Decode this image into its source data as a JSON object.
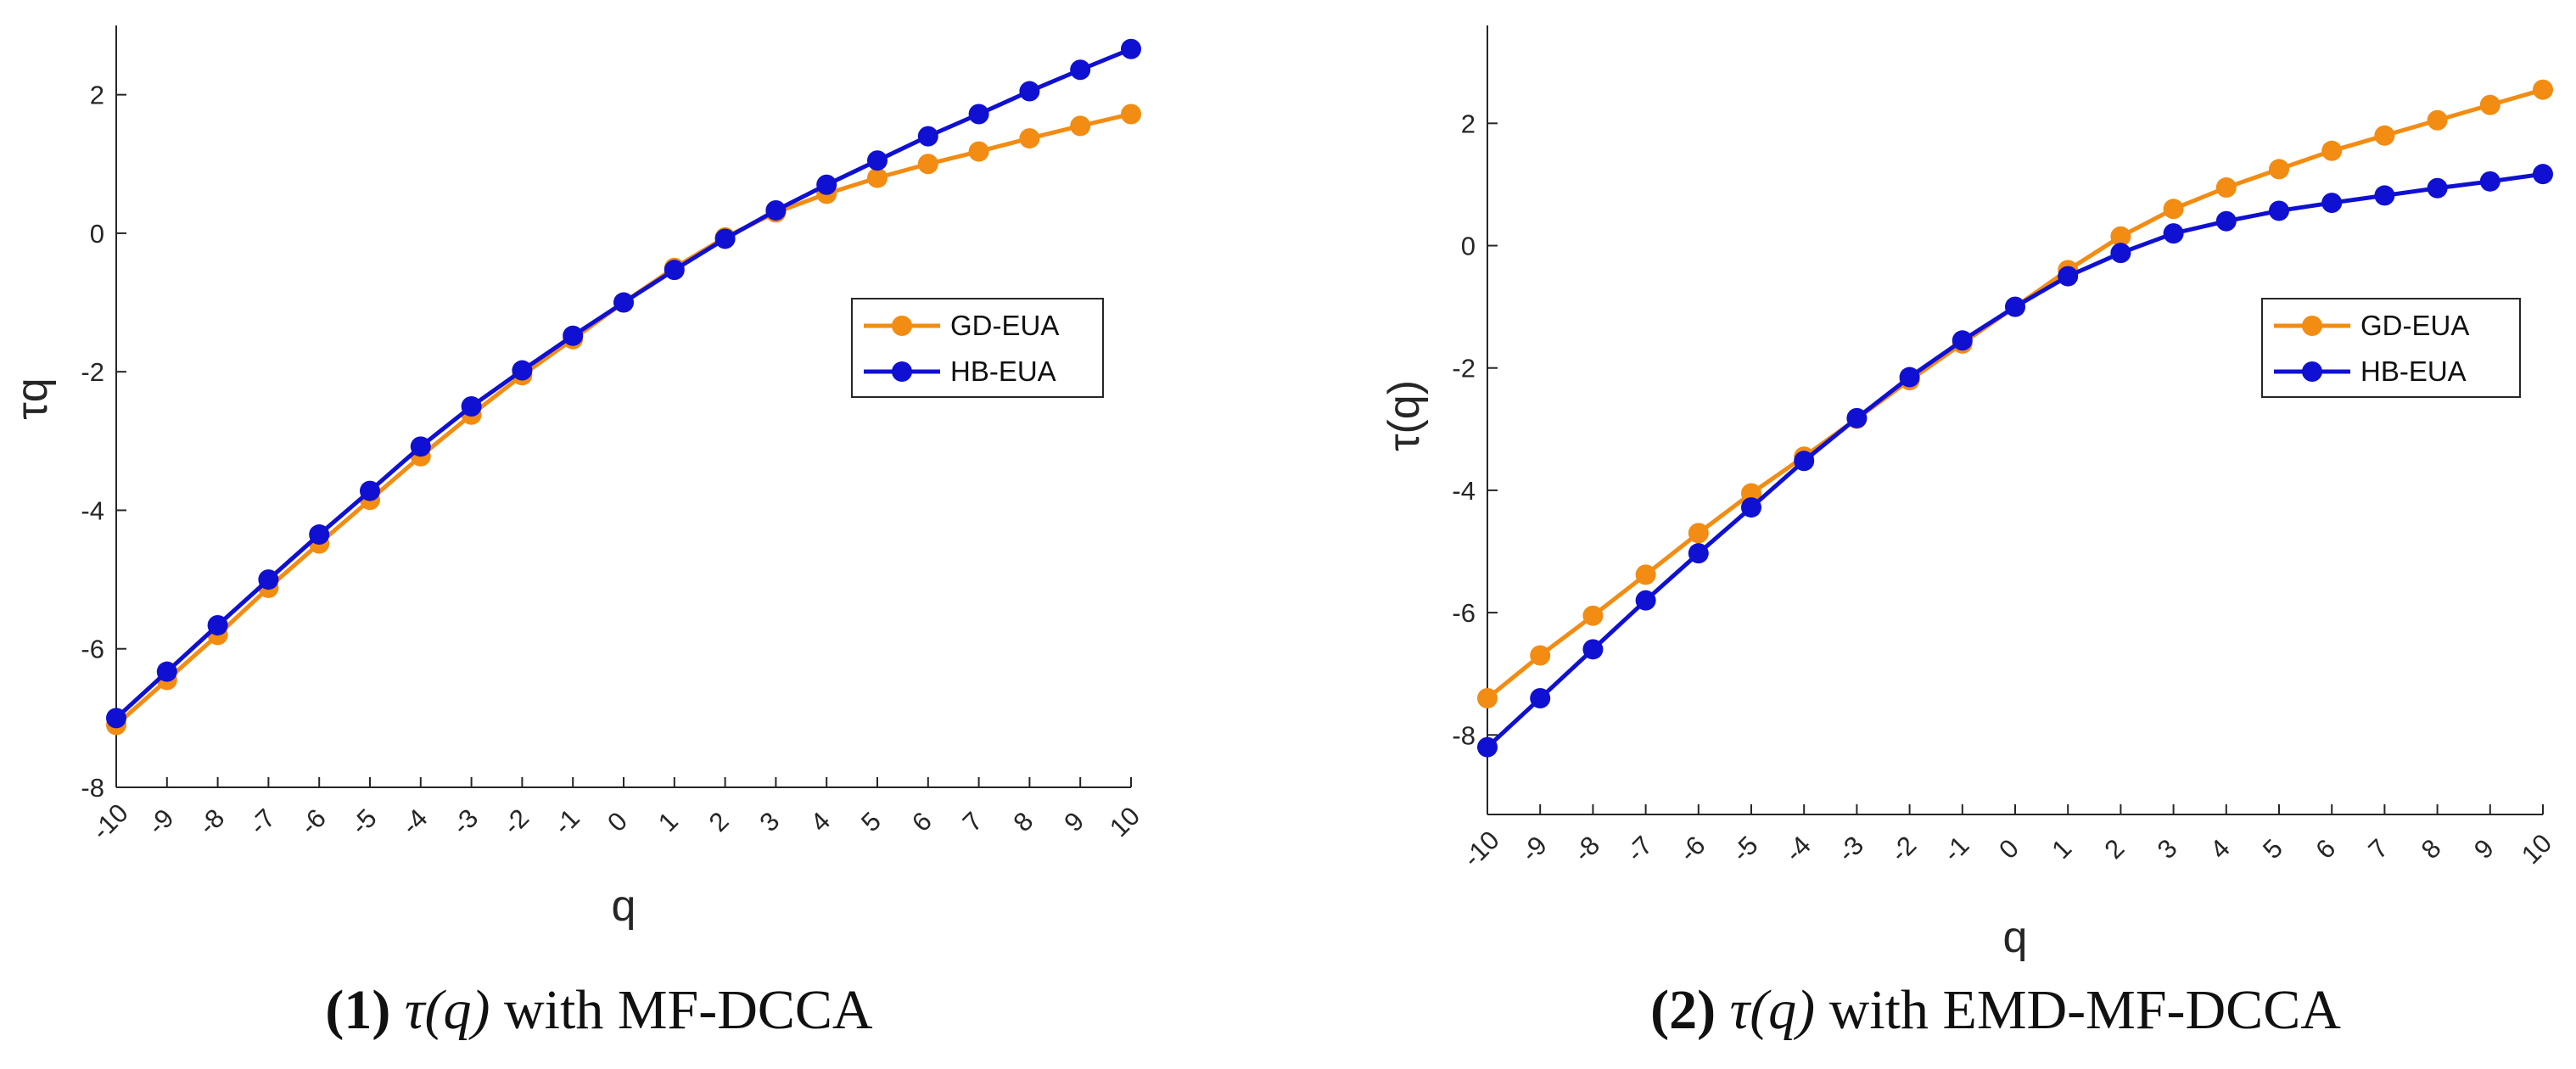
{
  "figure": {
    "panels": [
      {
        "caption_num": "1",
        "caption_math": "τ(q)",
        "caption_rest": " with MF-DCCA"
      },
      {
        "caption_num": "2",
        "caption_math": "τ(q)",
        "caption_rest": " with EMD-MF-DCCA"
      }
    ]
  },
  "colors": {
    "orange": "#f28c12",
    "blue": "#1010d2",
    "axis": "#262626"
  },
  "chart_data": [
    {
      "type": "line",
      "xlabel": "q",
      "ylabel": "τq",
      "xlim": [
        -10,
        10
      ],
      "ylim": [
        -8,
        3
      ],
      "xticks": [
        -10,
        -9,
        -8,
        -7,
        -6,
        -5,
        -4,
        -3,
        -2,
        -1,
        0,
        1,
        2,
        3,
        4,
        5,
        6,
        7,
        8,
        9,
        10
      ],
      "yticks": [
        -8,
        -6,
        -4,
        -2,
        0,
        2
      ],
      "grid": false,
      "legend_position": "right-middle",
      "x": [
        -10,
        -9,
        -8,
        -7,
        -6,
        -5,
        -4,
        -3,
        -2,
        -1,
        0,
        1,
        2,
        3,
        4,
        5,
        6,
        7,
        8,
        9,
        10
      ],
      "series": [
        {
          "name": "GD-EUA",
          "color": "#f28c12",
          "values": [
            -7.1,
            -6.45,
            -5.8,
            -5.12,
            -4.48,
            -3.85,
            -3.22,
            -2.62,
            -2.05,
            -1.53,
            -1.0,
            -0.5,
            -0.06,
            0.3,
            0.57,
            0.8,
            1.0,
            1.18,
            1.37,
            1.55,
            1.72
          ]
        },
        {
          "name": "HB-EUA",
          "color": "#1010d2",
          "values": [
            -7.0,
            -6.33,
            -5.66,
            -5.0,
            -4.35,
            -3.72,
            -3.08,
            -2.5,
            -1.98,
            -1.48,
            -1.0,
            -0.53,
            -0.08,
            0.33,
            0.7,
            1.05,
            1.4,
            1.72,
            2.05,
            2.36,
            2.66
          ]
        }
      ]
    },
    {
      "type": "line",
      "xlabel": "q",
      "ylabel": "τ(q)",
      "xlim": [
        -10,
        10
      ],
      "ylim": [
        -9.3,
        3.6
      ],
      "xticks": [
        -10,
        -9,
        -8,
        -7,
        -6,
        -5,
        -4,
        -3,
        -2,
        -1,
        0,
        1,
        2,
        3,
        4,
        5,
        6,
        7,
        8,
        9,
        10
      ],
      "yticks": [
        -8,
        -6,
        -4,
        -2,
        0,
        2
      ],
      "grid": false,
      "legend_position": "right-middle",
      "x": [
        -10,
        -9,
        -8,
        -7,
        -6,
        -5,
        -4,
        -3,
        -2,
        -1,
        0,
        1,
        2,
        3,
        4,
        5,
        6,
        7,
        8,
        9,
        10
      ],
      "series": [
        {
          "name": "GD-EUA",
          "color": "#f28c12",
          "values": [
            -7.4,
            -6.7,
            -6.05,
            -5.38,
            -4.7,
            -4.05,
            -3.45,
            -2.83,
            -2.2,
            -1.6,
            -1.0,
            -0.4,
            0.15,
            0.6,
            0.95,
            1.25,
            1.55,
            1.8,
            2.05,
            2.3,
            2.55
          ]
        },
        {
          "name": "HB-EUA",
          "color": "#1010d2",
          "values": [
            -8.2,
            -7.4,
            -6.6,
            -5.8,
            -5.03,
            -4.28,
            -3.52,
            -2.82,
            -2.15,
            -1.55,
            -1.0,
            -0.5,
            -0.12,
            0.2,
            0.4,
            0.57,
            0.7,
            0.82,
            0.94,
            1.05,
            1.17
          ]
        }
      ]
    }
  ]
}
